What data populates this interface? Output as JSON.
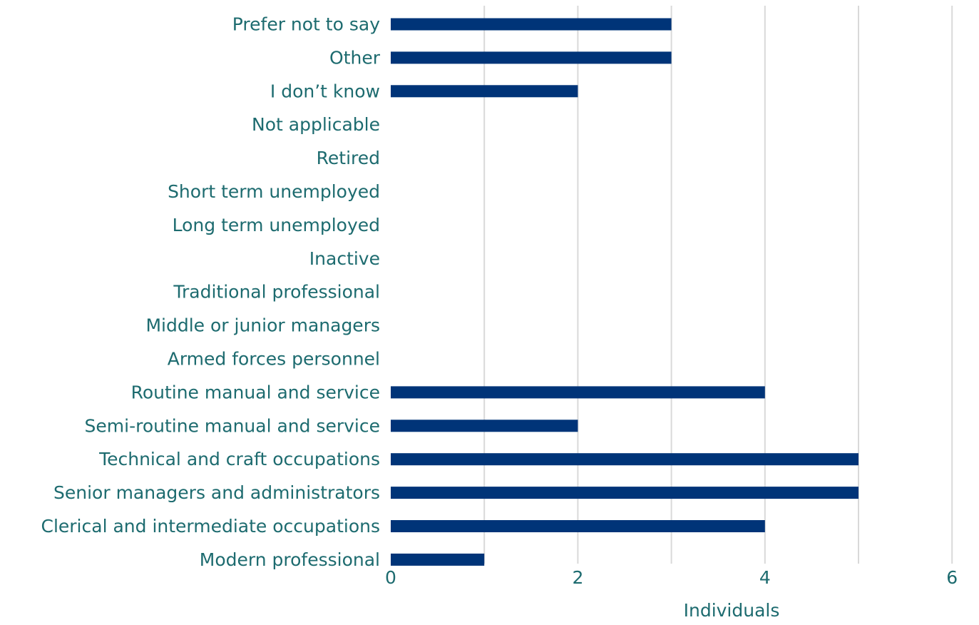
{
  "chart_data": {
    "type": "bar",
    "orientation": "horizontal",
    "categories": [
      "Prefer not to say",
      "Other",
      "I don’t know",
      "Not applicable",
      "Retired",
      "Short term unemployed",
      "Long term unemployed",
      "Inactive",
      "Traditional professional",
      "Middle or junior managers",
      "Armed forces personnel",
      "Routine manual and service",
      "Semi-routine manual and service",
      "Technical and craft occupations",
      "Senior managers and administrators",
      "Clerical and intermediate occupations",
      "Modern professional"
    ],
    "values": [
      3,
      3,
      2,
      0,
      0,
      0,
      0,
      0,
      0,
      0,
      0,
      4,
      2,
      5,
      5,
      4,
      1
    ],
    "xlabel": "Individuals",
    "xlim": [
      0,
      6
    ],
    "xticks": [
      0,
      2,
      4,
      6
    ],
    "grid": true,
    "colors": {
      "bar": "#003478",
      "grid": "#d9d9d9",
      "text": "#1d6b6f"
    }
  }
}
